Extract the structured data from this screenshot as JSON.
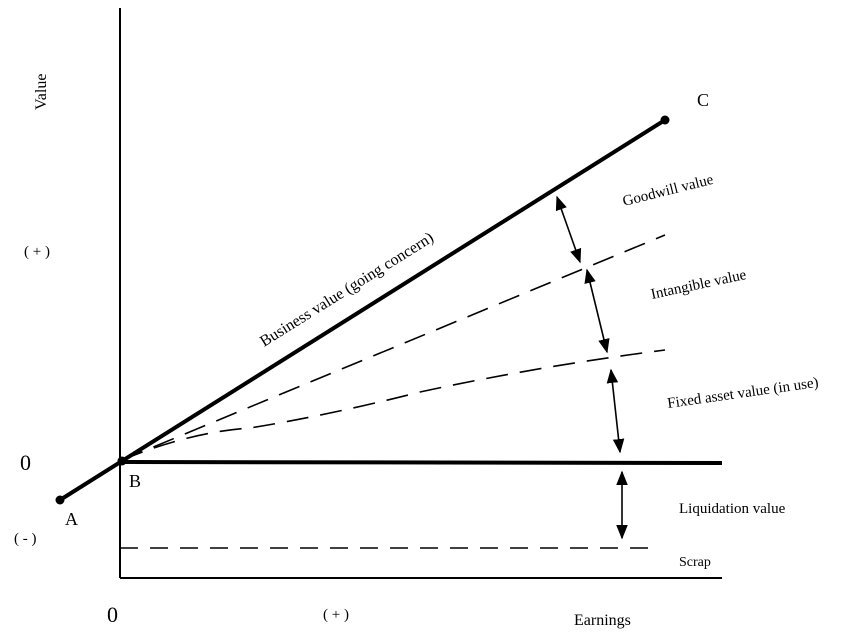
{
  "axes": {
    "y_label": "Value",
    "x_label": "Earnings",
    "y_plus": "( + )",
    "y_zero": "0",
    "y_minus": "( - )",
    "x_zero": "0",
    "x_plus": "( + )"
  },
  "points": {
    "a": "A",
    "b": "B",
    "c": "C"
  },
  "lines": {
    "business_value": "Business value  (going concern)"
  },
  "regions": {
    "goodwill": "Goodwill value",
    "intangible": "Intangible value",
    "fixed_asset": "Fixed asset value (in use)",
    "liquidation": "Liquidation value",
    "scrap": "Scrap"
  },
  "colors": {
    "ink": "#000000",
    "background": "#ffffff"
  }
}
